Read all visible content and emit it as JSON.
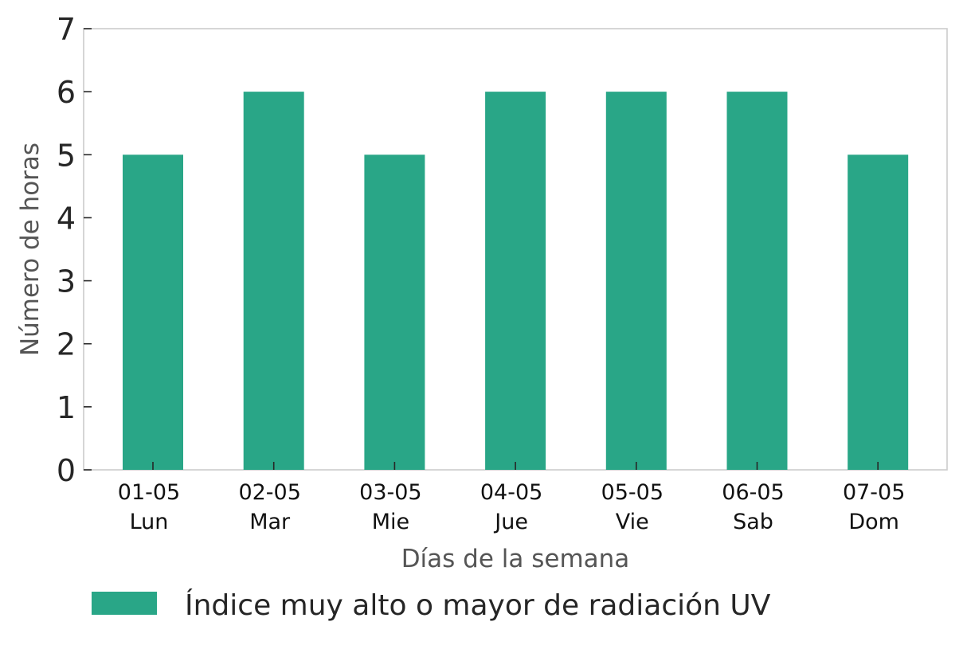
{
  "chart_data": {
    "type": "bar",
    "categories": [
      {
        "date": "01-05",
        "day": "Lun"
      },
      {
        "date": "02-05",
        "day": "Mar"
      },
      {
        "date": "03-05",
        "day": "Mie"
      },
      {
        "date": "04-05",
        "day": "Jue"
      },
      {
        "date": "05-05",
        "day": "Vie"
      },
      {
        "date": "06-05",
        "day": "Sab"
      },
      {
        "date": "07-05",
        "day": "Dom"
      }
    ],
    "series": [
      {
        "name": "Índice muy alto o mayor de radiación UV",
        "values": [
          5,
          6,
          5,
          6,
          6,
          6,
          5
        ],
        "color": "#29a687"
      }
    ],
    "xlabel": "Días de la semana",
    "ylabel": "Número de horas",
    "ylim": [
      0,
      7
    ],
    "yticks": [
      "0",
      "1",
      "2",
      "3",
      "4",
      "5",
      "6",
      "7"
    ],
    "grid": false,
    "legend_position": "bottom-left"
  }
}
